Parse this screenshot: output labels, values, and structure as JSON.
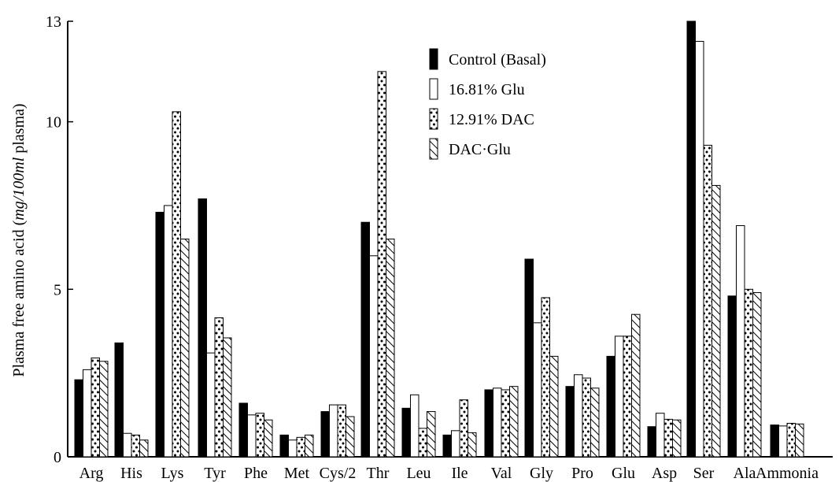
{
  "chart_data": {
    "type": "bar",
    "title": "",
    "xlabel": "",
    "ylabel_prefix": "Plasma free amino acid (",
    "ylabel_unit": "mg/100ml",
    "ylabel_suffix": " plasma)",
    "ylim": [
      0,
      13
    ],
    "yticks": [
      0,
      5,
      10,
      13
    ],
    "grid": false,
    "legend_placement": "top-center",
    "categories": [
      "Arg",
      "His",
      "Lys",
      "Tyr",
      "Phe",
      "Met",
      "Cys/2",
      "Thr",
      "Leu",
      "Ile",
      "Val",
      "Gly",
      "Pro",
      "Glu",
      "Asp",
      "Ser",
      "Ala",
      "Ammonia"
    ],
    "series": [
      {
        "name": "Control (Basal)",
        "pattern": "solid",
        "values": [
          2.3,
          3.4,
          7.3,
          7.7,
          1.6,
          0.65,
          1.35,
          7.0,
          1.45,
          0.65,
          2.0,
          5.9,
          2.1,
          3.0,
          0.9,
          13.0,
          4.8,
          0.95
        ]
      },
      {
        "name": "16.81% Glu",
        "pattern": "empty",
        "values": [
          2.6,
          0.7,
          7.5,
          3.1,
          1.25,
          0.5,
          1.55,
          6.0,
          1.85,
          0.78,
          2.05,
          4.0,
          2.45,
          3.6,
          1.3,
          12.4,
          6.9,
          0.92
        ]
      },
      {
        "name": "12.91% DAC",
        "pattern": "dots",
        "values": [
          2.95,
          0.65,
          10.3,
          4.15,
          1.3,
          0.58,
          1.55,
          11.5,
          0.85,
          1.7,
          2.0,
          4.75,
          2.35,
          3.6,
          1.12,
          9.3,
          5.0,
          1.0
        ]
      },
      {
        "name": "DAC·Glu",
        "pattern": "hatch",
        "values": [
          2.85,
          0.5,
          6.5,
          3.55,
          1.1,
          0.65,
          1.2,
          6.5,
          1.35,
          0.72,
          2.1,
          3.0,
          2.05,
          4.25,
          1.1,
          8.1,
          4.9,
          0.98
        ]
      }
    ]
  }
}
